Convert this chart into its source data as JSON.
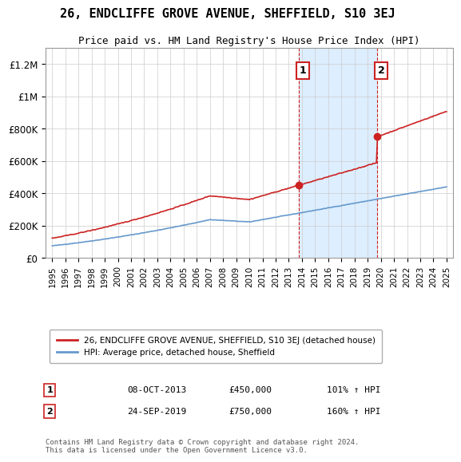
{
  "title": "26, ENDCLIFFE GROVE AVENUE, SHEFFIELD, S10 3EJ",
  "subtitle": "Price paid vs. HM Land Registry's House Price Index (HPI)",
  "ylim": [
    0,
    1300000
  ],
  "yticks": [
    0,
    200000,
    400000,
    600000,
    800000,
    1000000,
    1200000
  ],
  "ytick_labels": [
    "£0",
    "£200K",
    "£400K",
    "£600K",
    "£800K",
    "£1M",
    "£1.2M"
  ],
  "xlim_start": 1994.5,
  "xlim_end": 2025.5,
  "hpi_color": "#6699cc",
  "price_color": "#cc2222",
  "highlight_bg": "#ddeeff",
  "sale1_year": 2013.77,
  "sale1_price": 450000,
  "sale2_year": 2019.73,
  "sale2_price": 750000,
  "legend_line1": "26, ENDCLIFFE GROVE AVENUE, SHEFFIELD, S10 3EJ (detached house)",
  "legend_line2": "HPI: Average price, detached house, Sheffield",
  "annotation1_label": "1",
  "annotation1_date": "08-OCT-2013",
  "annotation1_price": "£450,000",
  "annotation1_hpi": "101% ↑ HPI",
  "annotation2_label": "2",
  "annotation2_date": "24-SEP-2019",
  "annotation2_price": "£750,000",
  "annotation2_hpi": "160% ↑ HPI",
  "footnote": "Contains HM Land Registry data © Crown copyright and database right 2024.\nThis data is licensed under the Open Government Licence v3.0."
}
